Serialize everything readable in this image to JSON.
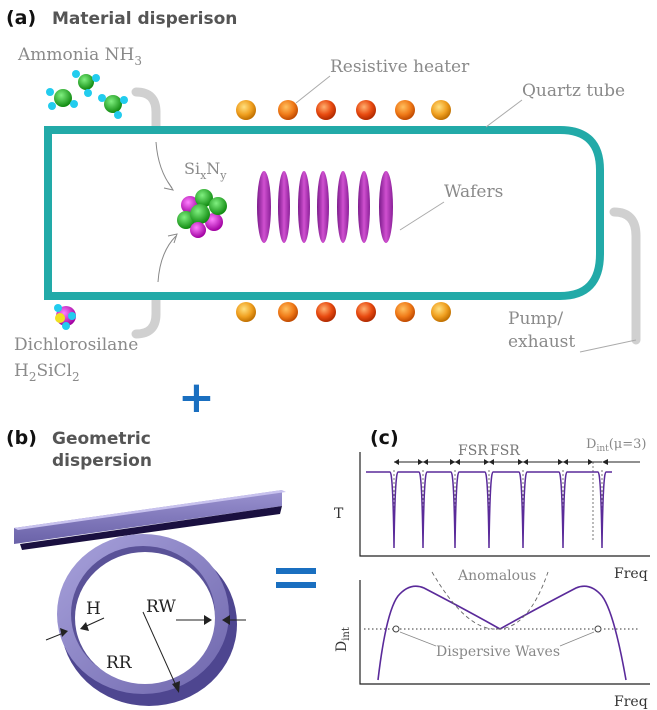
{
  "panel_a": {
    "letter": "(a)",
    "title": "Material disperison",
    "ammonia": {
      "text": "Ammonia NH",
      "sub": "3"
    },
    "resistive_heater": "Resistive heater",
    "quartz_tube": "Quartz tube",
    "sixny": {
      "si": "Si",
      "x": "x",
      "n": "N",
      "y": "y"
    },
    "wafers": "Wafers",
    "pump": {
      "line1": "Pump/",
      "line2": "exhaust"
    },
    "dichlorosilane": "Dichlorosilane",
    "h2sicl2": {
      "h": "H",
      "two": "2",
      "sicl": "SiCl",
      "two_b": "2"
    }
  },
  "plus_sign": "+",
  "equals_sign": "=",
  "panel_b": {
    "letter": "(b)",
    "title_line1": "Geometric",
    "title_line2": "dispersion",
    "h_label": "H",
    "rw_label": "RW",
    "rr_label": "RR"
  },
  "panel_c": {
    "letter": "(c)",
    "fsr1": "FSR",
    "fsr2": "FSR",
    "dint_top": {
      "d": "D",
      "sub": "int",
      "arg": "(μ=3)"
    },
    "t_label": "T",
    "freq1": "Freq",
    "d_int": {
      "d": "D",
      "sub": "int"
    },
    "anomalous": "Anomalous",
    "dispersive_waves": "Dispersive Waves",
    "freq2": "Freq"
  },
  "colors": {
    "tube": "#22aaa8",
    "wafer": "#b030b0",
    "heater_dark": "#e03c10",
    "heater_light": "#f0b020",
    "ring": "#8c84c4",
    "trace": "#5a2a9a",
    "blue_sign": "#1a6fc0"
  }
}
